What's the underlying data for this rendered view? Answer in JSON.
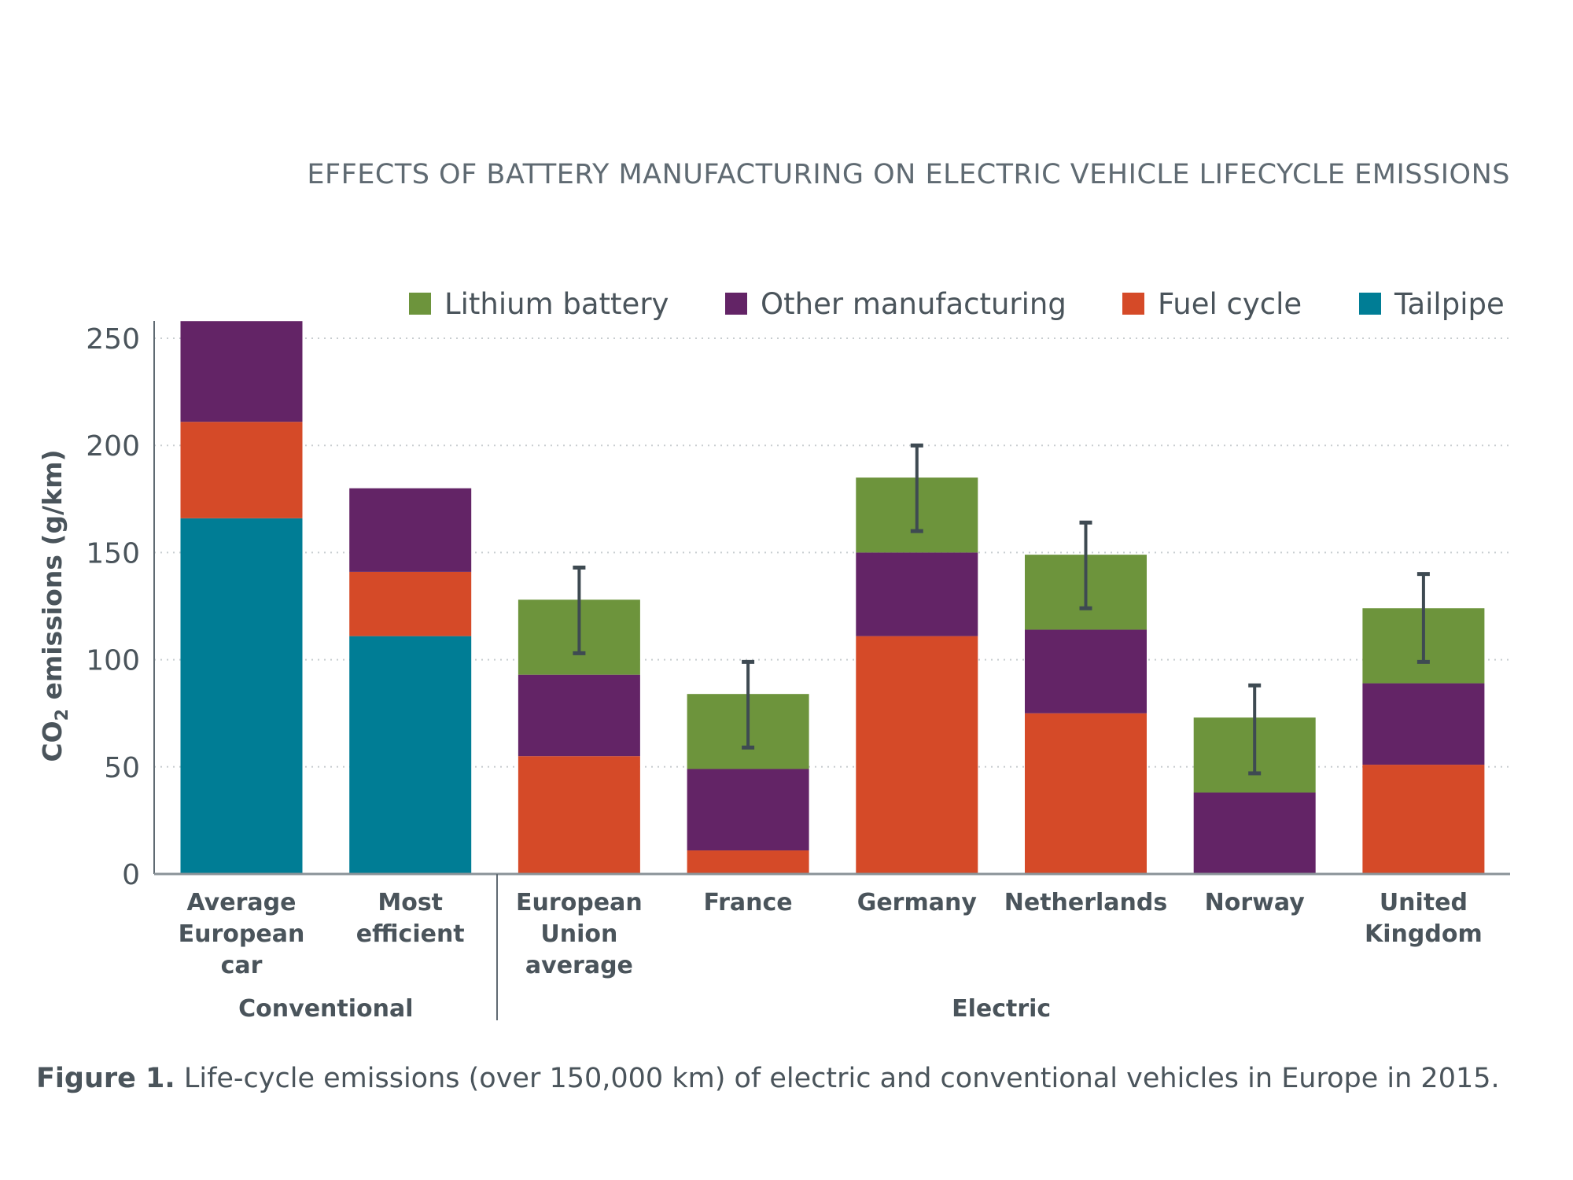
{
  "chart_data": {
    "type": "bar",
    "stacked": true,
    "title": "EFFECTS OF BATTERY MANUFACTURING ON ELECTRIC VEHICLE LIFECYCLE EMISSIONS",
    "ylabel_prefix": "CO",
    "ylabel_sub": "2",
    "ylabel_suffix": " emissions (g/km)",
    "xlabel": "",
    "ylim": [
      0,
      260
    ],
    "yticks": [
      0,
      50,
      100,
      150,
      200,
      250
    ],
    "grid": true,
    "legend_placement": "top-right",
    "categories": [
      [
        "Average",
        "European",
        "car"
      ],
      [
        "Most",
        "efficient"
      ],
      [
        "European",
        "Union",
        "average"
      ],
      [
        "France"
      ],
      [
        "Germany"
      ],
      [
        "Netherlands"
      ],
      [
        "Norway"
      ],
      [
        "United",
        "Kingdom"
      ]
    ],
    "groups": [
      {
        "label": "Conventional",
        "categories": [
          0,
          1
        ]
      },
      {
        "label": "Electric",
        "categories": [
          2,
          3,
          4,
          5,
          6,
          7
        ]
      }
    ],
    "series": [
      {
        "name": "Tailpipe",
        "color": "#007d95",
        "values": [
          166,
          111,
          0,
          0,
          0,
          0,
          0,
          0
        ]
      },
      {
        "name": "Fuel cycle",
        "color": "#d54a28",
        "values": [
          45,
          30,
          55,
          11,
          111,
          75,
          0,
          51
        ]
      },
      {
        "name": "Other manufacturing",
        "color": "#632466",
        "values": [
          47,
          39,
          38,
          38,
          39,
          39,
          38,
          38
        ]
      },
      {
        "name": "Lithium battery",
        "color": "#6d943c",
        "values": [
          0,
          0,
          35,
          35,
          35,
          35,
          35,
          35
        ]
      }
    ],
    "legend_order": [
      "Lithium battery",
      "Other manufacturing",
      "Fuel cycle",
      "Tailpipe"
    ],
    "error_bars": [
      null,
      null,
      [
        103,
        143
      ],
      [
        59,
        99
      ],
      [
        160,
        200
      ],
      [
        124,
        164
      ],
      [
        47,
        88
      ],
      [
        99,
        140
      ]
    ]
  },
  "caption": {
    "label": "Figure 1.",
    "text": " Life-cycle emissions (over 150,000 km) of electric and conventional vehicles in Europe in 2015."
  }
}
